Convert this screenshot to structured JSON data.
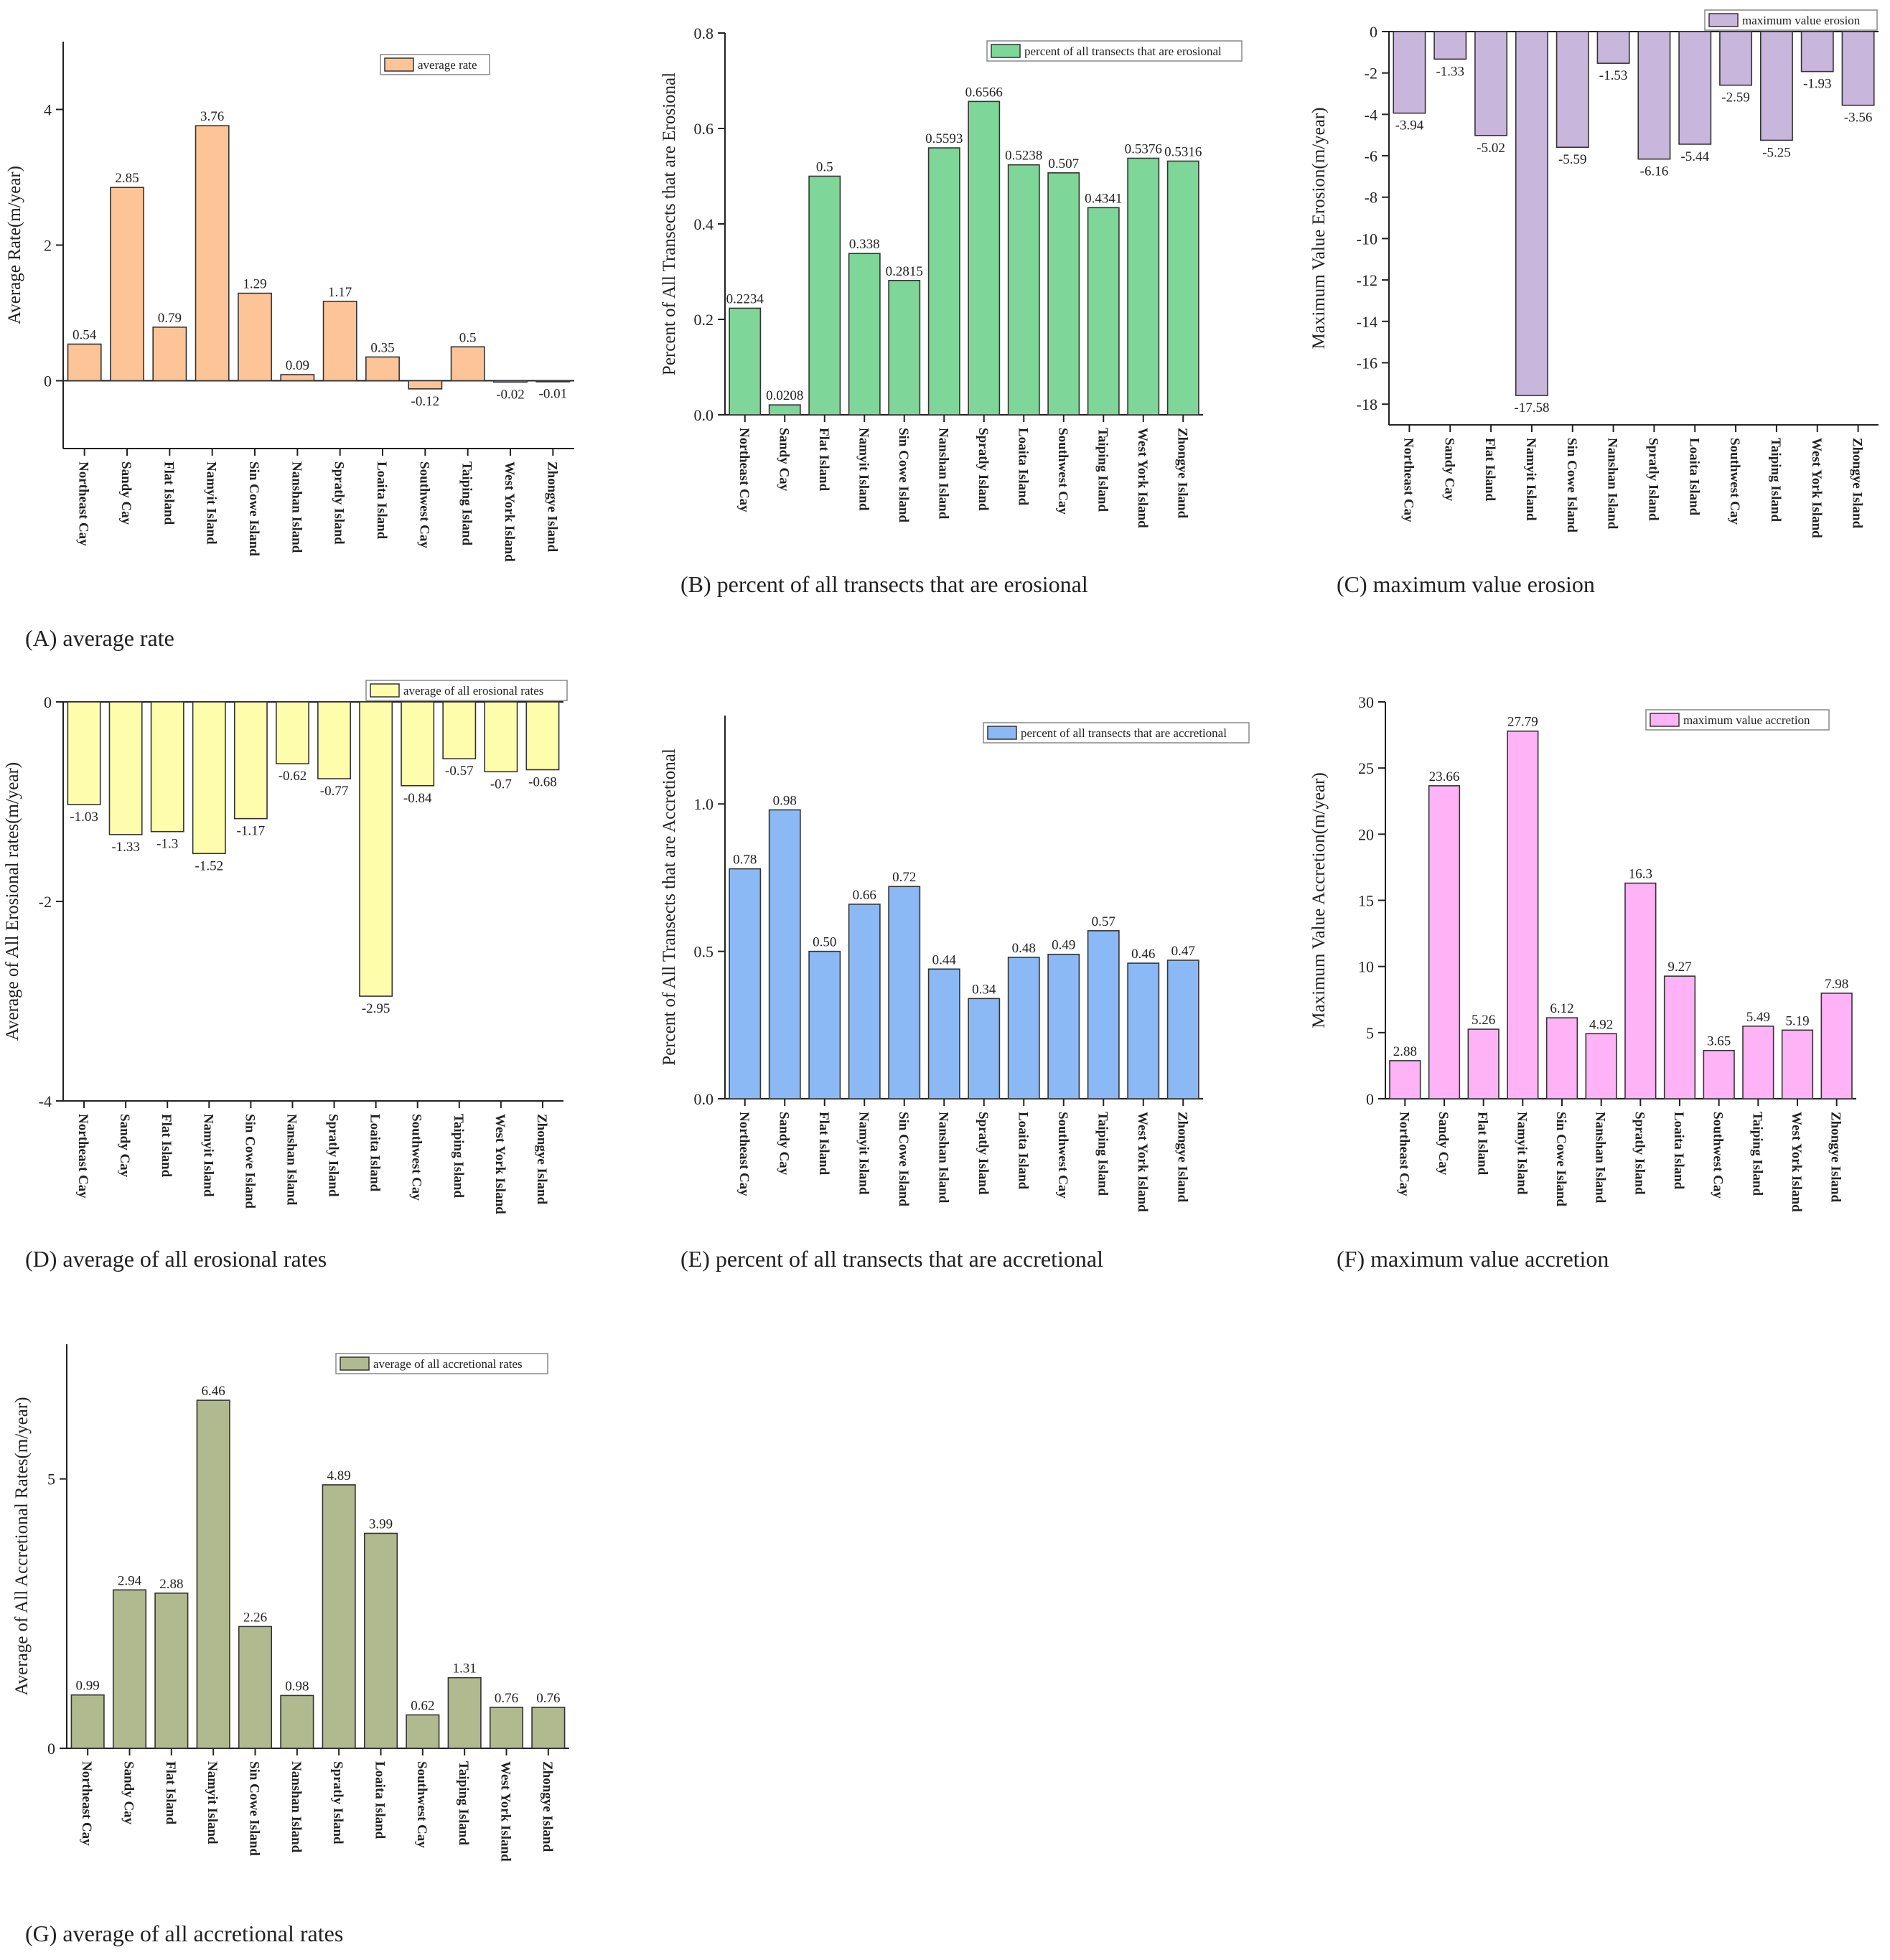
{
  "chart_data": [
    {
      "panel": "A",
      "type": "bar",
      "caption": "(A) average rate",
      "ylabel": "Average Rate(m/year)",
      "legend": "average rate",
      "legend_position": "top-right",
      "color": "#fdc498",
      "ylim": [
        -1,
        5
      ],
      "yticks": [
        0,
        2,
        4
      ],
      "tick_labels": [
        "0",
        "2",
        "4"
      ],
      "categories": [
        "Northeast Cay",
        "Sandy Cay",
        "Flat Island",
        "Namyit Island",
        "Sin Cowe Island",
        "Nanshan Island",
        "Spratly Island",
        "Loaita Island",
        "Southwest Cay",
        "Taiping Island",
        "West York Island",
        "Zhongye Island"
      ],
      "values": [
        0.54,
        2.85,
        0.79,
        3.76,
        1.29,
        0.09,
        1.17,
        0.35,
        -0.12,
        0.5,
        -0.02,
        -0.01
      ],
      "labels": [
        "0.54",
        "2.85",
        "0.79",
        "3.76",
        "1.29",
        "0.09",
        "1.17",
        "0.35",
        "-0.12",
        "0.5",
        "-0.02",
        "-0.01"
      ]
    },
    {
      "panel": "B",
      "type": "bar",
      "caption": "(B) percent of all transects that are erosional",
      "ylabel": "Percent of All Transects that are Erosional",
      "legend": "percent of all transects that are erosional",
      "legend_position": "top-right",
      "color": "#7ed698",
      "ylim": [
        0,
        0.8
      ],
      "yticks": [
        0,
        0.2,
        0.4,
        0.6,
        0.8
      ],
      "tick_labels": [
        "0.0",
        "0.2",
        "0.4",
        "0.6",
        "0.8"
      ],
      "categories": [
        "Northeast Cay",
        "Sandy Cay",
        "Flat Island",
        "Namyit Island",
        "Sin Cowe Island",
        "Nanshan Island",
        "Spratly Island",
        "Loaita Island",
        "Southwest Cay",
        "Taiping Island",
        "West York Island",
        "Zhongye Island"
      ],
      "values": [
        0.2234,
        0.0208,
        0.5,
        0.338,
        0.2815,
        0.5593,
        0.6566,
        0.5238,
        0.507,
        0.4341,
        0.5376,
        0.5316
      ],
      "labels": [
        "0.2234",
        "0.0208",
        "0.5",
        "0.338",
        "0.2815",
        "0.5593",
        "0.6566",
        "0.5238",
        "0.507",
        "0.4341",
        "0.5376",
        "0.5316"
      ]
    },
    {
      "panel": "C",
      "type": "bar",
      "caption": "(C) maximum value erosion",
      "ylabel": "Maximum Value Erosion(m/year)",
      "legend": "maximum value erosion",
      "legend_position": "top-right",
      "color": "#c9b6dc",
      "ylim": [
        -19,
        0
      ],
      "yticks": [
        0,
        -2,
        -4,
        -6,
        -8,
        -10,
        -12,
        -14,
        -16,
        -18
      ],
      "tick_labels": [
        "0",
        "-2",
        "-4",
        "-6",
        "-8",
        "-10",
        "-12",
        "-14",
        "-16",
        "-18"
      ],
      "categories": [
        "Northeast Cay",
        "Sandy Cay",
        "Flat Island",
        "Namyit Island",
        "Sin Cowe Island",
        "Nanshan Island",
        "Spratly Island",
        "Loaita Island",
        "Southwest Cay",
        "Taiping Island",
        "West York Island",
        "Zhongye Island"
      ],
      "values": [
        -3.94,
        -1.33,
        -5.02,
        -17.58,
        -5.59,
        -1.53,
        -6.16,
        -5.44,
        -2.59,
        -5.25,
        -1.93,
        -3.56
      ],
      "labels": [
        "-3.94",
        "-1.33",
        "-5.02",
        "-17.58",
        "-5.59",
        "-1.53",
        "-6.16",
        "-5.44",
        "-2.59",
        "-5.25",
        "-1.93",
        "-3.56"
      ]
    },
    {
      "panel": "D",
      "type": "bar",
      "caption": "(D) average of all erosional rates",
      "ylabel": "Average of All Erosional rates(m/year)",
      "legend": "average of all erosional rates",
      "legend_position": "top-right",
      "color": "#fdfdac",
      "ylim": [
        -4,
        0
      ],
      "yticks": [
        0,
        -2,
        -4
      ],
      "tick_labels": [
        "0",
        "-2",
        "-4"
      ],
      "categories": [
        "Northeast Cay",
        "Sandy Cay",
        "Flat Island",
        "Namyit Island",
        "Sin Cowe Island",
        "Nanshan Island",
        "Spratly Island",
        "Loaita Island",
        "Southwest Cay",
        "Taiping Island",
        "West York Island",
        "Zhongye Island"
      ],
      "values": [
        -1.03,
        -1.33,
        -1.3,
        -1.52,
        -1.17,
        -0.62,
        -0.77,
        -2.95,
        -0.84,
        -0.57,
        -0.7,
        -0.68
      ],
      "labels": [
        "-1.03",
        "-1.33",
        "-1.3",
        "-1.52",
        "-1.17",
        "-0.62",
        "-0.77",
        "-2.95",
        "-0.84",
        "-0.57",
        "-0.7",
        "-0.68"
      ]
    },
    {
      "panel": "E",
      "type": "bar",
      "caption": "(E) percent of all transects that are accretional",
      "ylabel": "Percent of All Transects that are Accretional",
      "legend": "percent of all transects that are accretional",
      "legend_position": "top-right",
      "color": "#8bb9f5",
      "ylim": [
        0,
        1.3
      ],
      "yticks": [
        0,
        0.5,
        1.0
      ],
      "tick_labels": [
        "0.0",
        "0.5",
        "1.0"
      ],
      "categories": [
        "Northeast Cay",
        "Sandy Cay",
        "Flat Island",
        "Namyit Island",
        "Sin Cowe Island",
        "Nanshan Island",
        "Spratly Island",
        "Loaita Island",
        "Southwest Cay",
        "Taiping Island",
        "West York Island",
        "Zhongye Island"
      ],
      "values": [
        0.78,
        0.98,
        0.5,
        0.66,
        0.72,
        0.44,
        0.34,
        0.48,
        0.49,
        0.57,
        0.46,
        0.47
      ],
      "labels": [
        "0.78",
        "0.98",
        "0.50",
        "0.66",
        "0.72",
        "0.44",
        "0.34",
        "0.48",
        "0.49",
        "0.57",
        "0.46",
        "0.47"
      ]
    },
    {
      "panel": "F",
      "type": "bar",
      "caption": "(F) maximum value accretion",
      "ylabel": "Maximum Value Accretion(m/year)",
      "legend": "maximum value accretion",
      "legend_position": "top-right",
      "color": "#fdb3f5",
      "ylim": [
        0,
        30
      ],
      "yticks": [
        0,
        5,
        10,
        15,
        20,
        25,
        30
      ],
      "tick_labels": [
        "0",
        "5",
        "10",
        "15",
        "20",
        "25",
        "30"
      ],
      "categories": [
        "Northeast Cay",
        "Sandy Cay",
        "Flat Island",
        "Namyit Island",
        "Sin Cowe Island",
        "Nanshan Island",
        "Spratly Island",
        "Loaita Island",
        "Southwest Cay",
        "Taiping Island",
        "West York Island",
        "Zhongye Island"
      ],
      "values": [
        2.88,
        23.66,
        5.26,
        27.79,
        6.12,
        4.92,
        16.3,
        9.27,
        3.65,
        5.49,
        5.19,
        7.98
      ],
      "labels": [
        "2.88",
        "23.66",
        "5.26",
        "27.79",
        "6.12",
        "4.92",
        "16.3",
        "9.27",
        "3.65",
        "5.49",
        "5.19",
        "7.98"
      ]
    },
    {
      "panel": "G",
      "type": "bar",
      "caption": "(G) average of all accretional rates",
      "ylabel": "Average of All Accretional Rates(m/year)",
      "legend": "average of all accretional rates",
      "legend_position": "top-right",
      "color": "#b1b98f",
      "ylim": [
        0,
        7.5
      ],
      "yticks": [
        0,
        5
      ],
      "tick_labels": [
        "0",
        "5"
      ],
      "categories": [
        "Northeast Cay",
        "Sandy Cay",
        "Flat Island",
        "Namyit Island",
        "Sin Cowe Island",
        "Nanshan Island",
        "Spratly Island",
        "Loaita Island",
        "Southwest Cay",
        "Taiping Island",
        "West York Island",
        "Zhongye Island"
      ],
      "values": [
        0.99,
        2.94,
        2.88,
        6.46,
        2.26,
        0.98,
        4.89,
        3.99,
        0.62,
        1.31,
        0.76,
        0.76
      ],
      "labels": [
        "0.99",
        "2.94",
        "2.88",
        "6.46",
        "2.26",
        "0.98",
        "4.89",
        "3.99",
        "0.62",
        "1.31",
        "0.76",
        "0.76"
      ]
    }
  ]
}
